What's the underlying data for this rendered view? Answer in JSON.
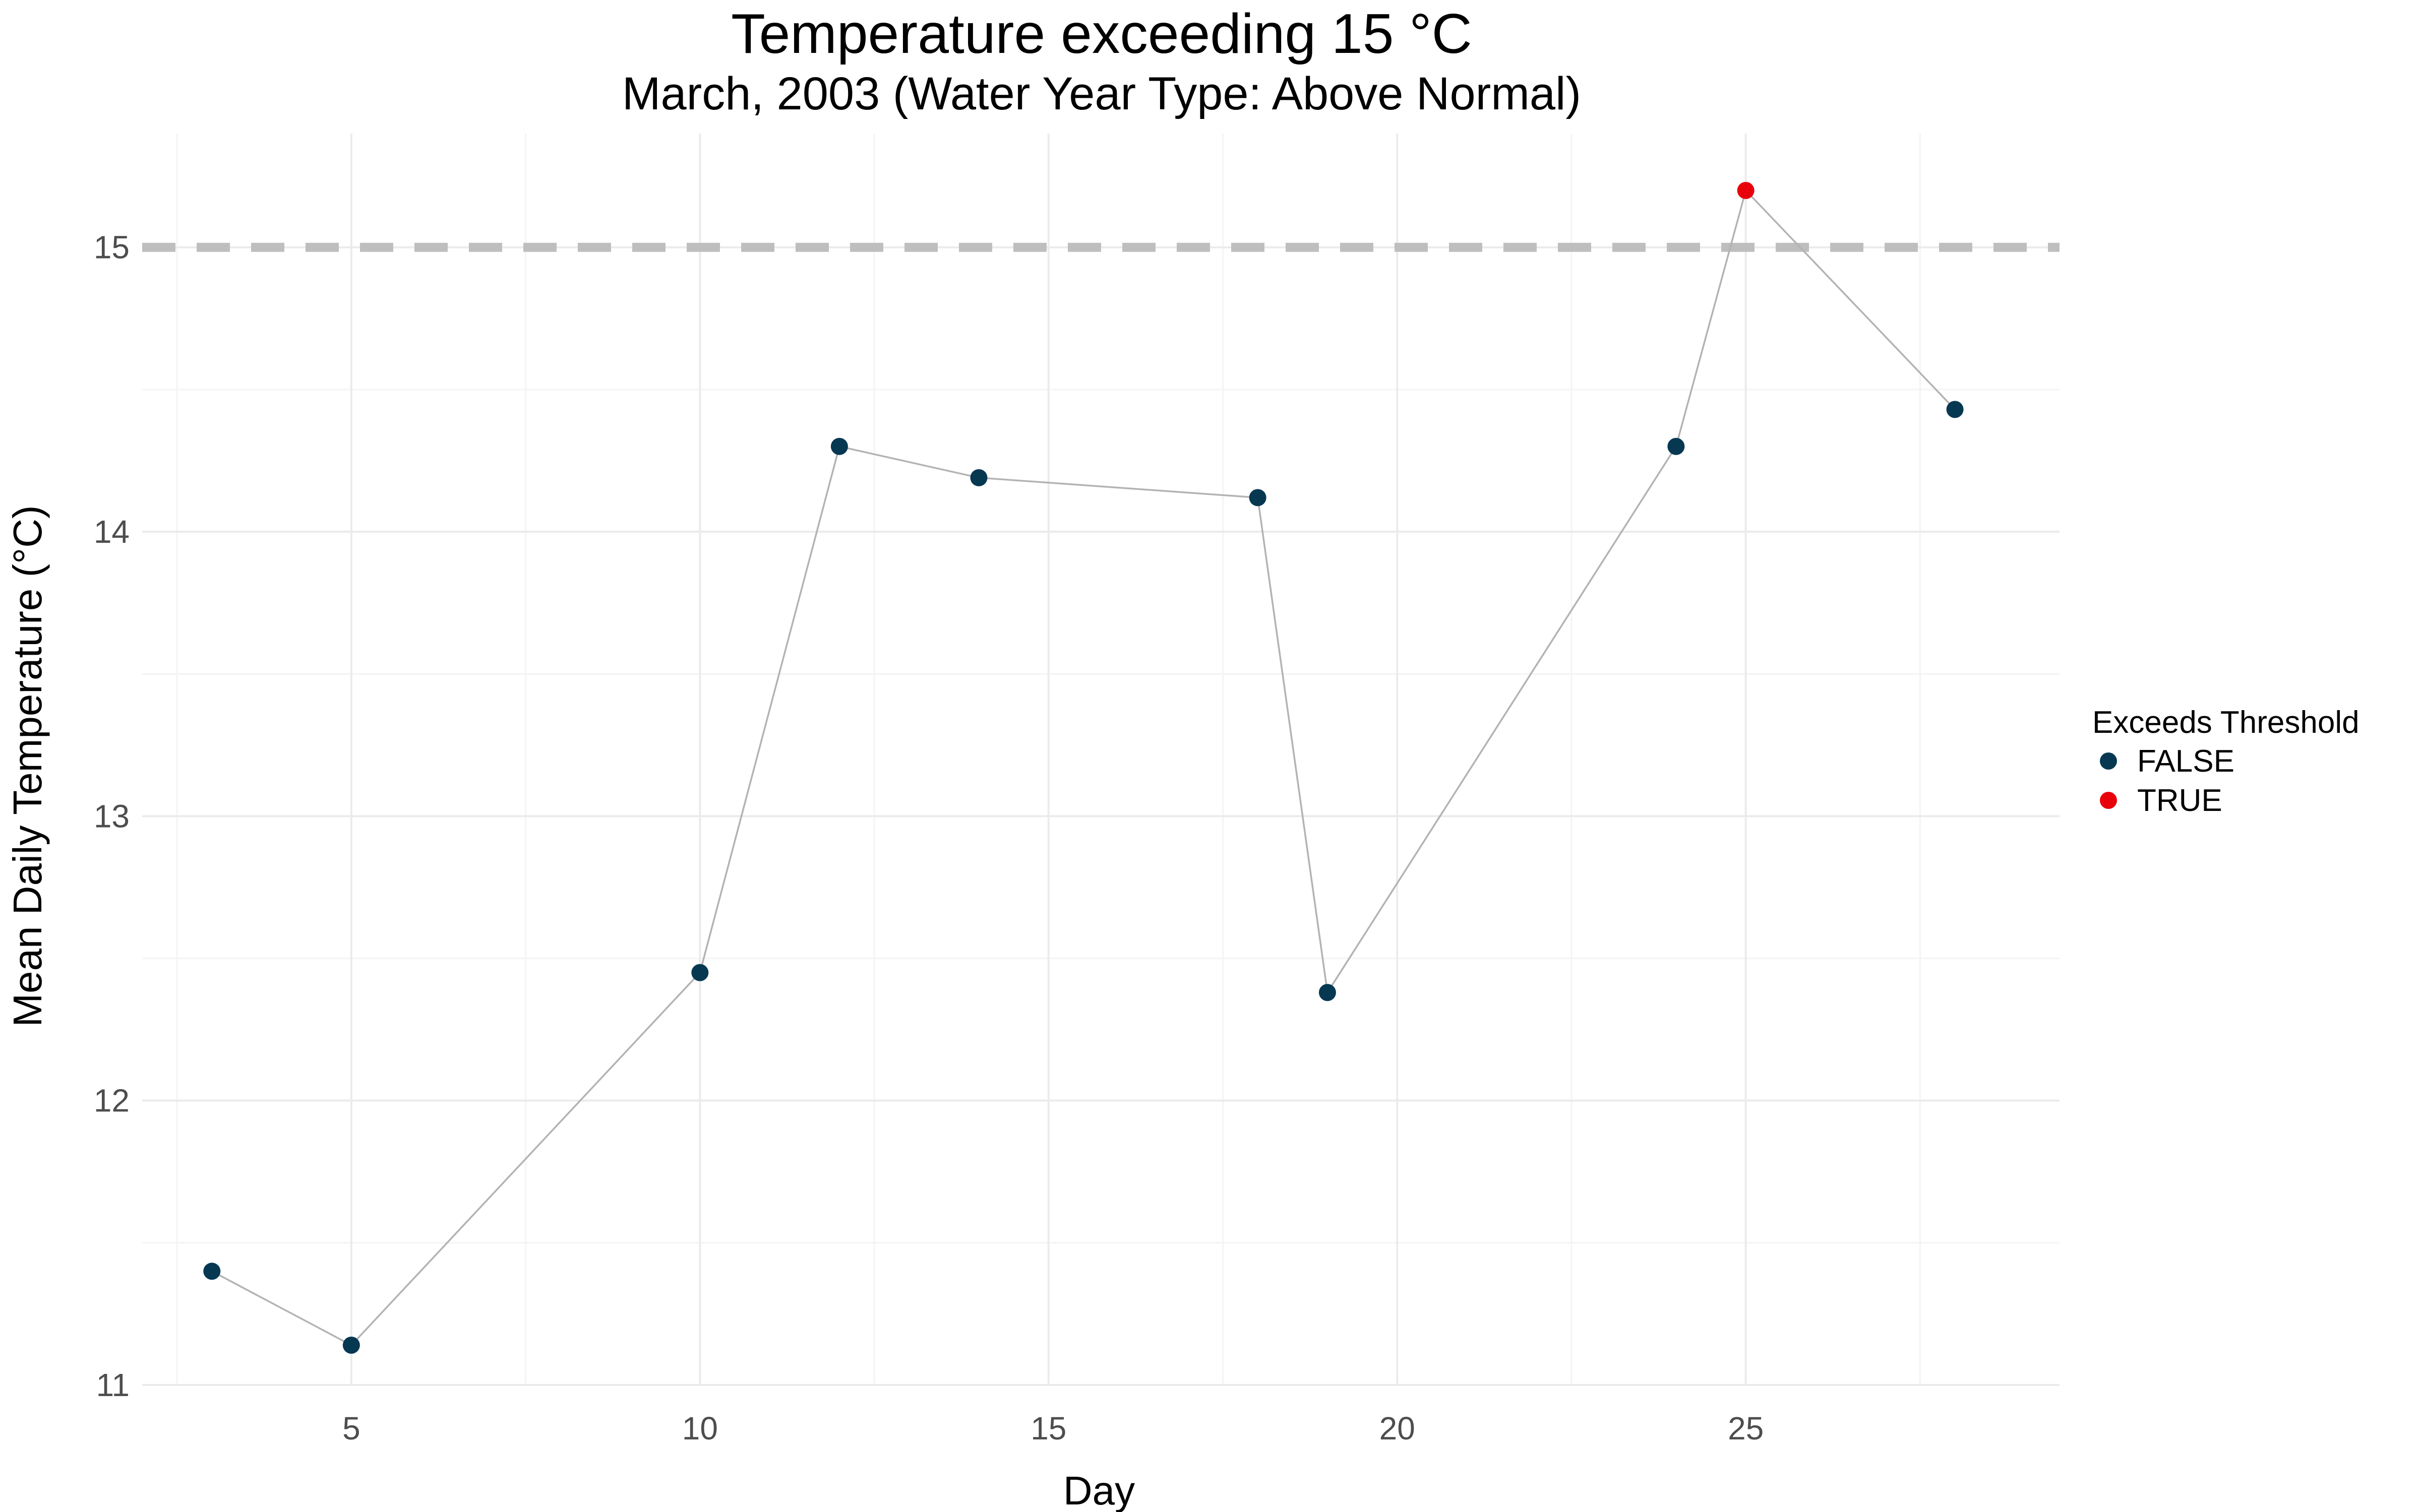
{
  "title": "Temperature exceeding 15 °C",
  "subtitle": "March, 2003 (Water Year Type: Above Normal)",
  "chart_data": {
    "type": "line",
    "title": "Temperature exceeding 15 °C",
    "subtitle": "March, 2003 (Water Year Type: Above Normal)",
    "xlabel": "Day",
    "ylabel": "Mean Daily Temperature (°C)",
    "xlim": [
      2,
      29.5
    ],
    "ylim": [
      11,
      15.4
    ],
    "x_ticks": [
      5,
      10,
      15,
      20,
      25
    ],
    "y_ticks": [
      11,
      12,
      13,
      14,
      15
    ],
    "grid": true,
    "threshold": 15,
    "threshold_style": "dashed",
    "x": [
      3,
      5,
      10,
      12,
      14,
      18,
      19,
      24,
      25,
      28
    ],
    "y": [
      11.4,
      11.14,
      12.45,
      14.3,
      14.19,
      14.12,
      12.38,
      14.3,
      15.2,
      14.43
    ],
    "exceeds": [
      false,
      false,
      false,
      false,
      false,
      false,
      false,
      false,
      true,
      false
    ],
    "legend": {
      "title": "Exceeds Threshold",
      "position": "right",
      "items": [
        {
          "label": "FALSE",
          "color": "#063852"
        },
        {
          "label": "TRUE",
          "color": "#e8000b"
        }
      ]
    },
    "colors": {
      "line": "#b3b3b3",
      "threshold": "#bebebe",
      "grid_major": "#ebebeb",
      "grid_minor": "#f4f4f4"
    }
  }
}
